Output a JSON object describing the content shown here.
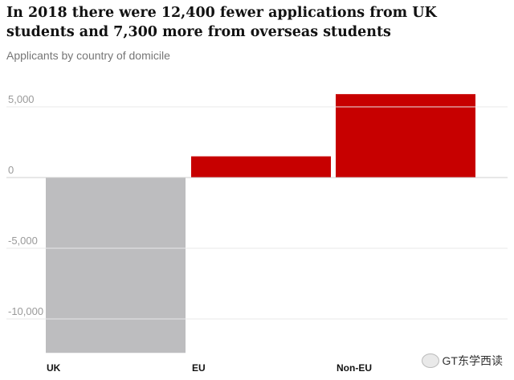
{
  "header": {
    "title": "In 2018 there were 12,400 fewer applications from UK students and 7,300 more from overseas students",
    "subtitle": "Applicants by country of domicile"
  },
  "watermark": {
    "icon": "wechat-icon",
    "text": "GT东学西读"
  },
  "chart_data": {
    "type": "bar",
    "title": "In 2018 there were 12,400 fewer applications from UK students and 7,300 more from overseas students",
    "subtitle": "Applicants by country of domicile",
    "categories": [
      "UK",
      "EU",
      "Non-EU"
    ],
    "values": [
      -12400,
      1500,
      5900
    ],
    "colors": [
      "#bdbdbf",
      "#c70000",
      "#c70000"
    ],
    "ylim": [
      -12400,
      6000
    ],
    "yticks": [
      5000,
      0,
      -5000,
      -10000
    ],
    "ytick_labels": [
      "5,000",
      "0",
      "-5,000",
      "-10,000"
    ],
    "grid": true,
    "legend": "none"
  }
}
